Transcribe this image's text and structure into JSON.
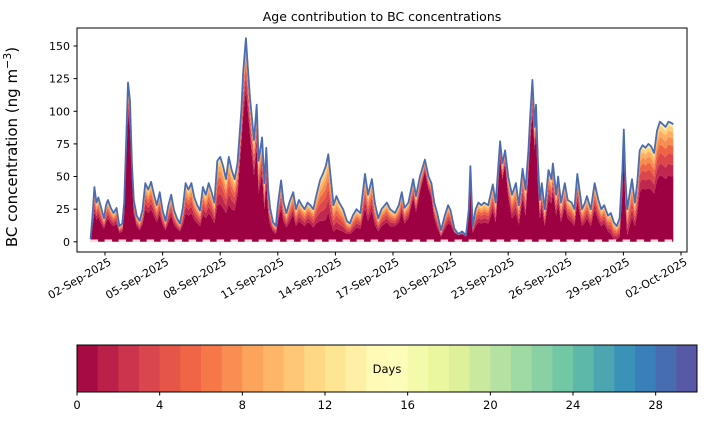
{
  "figure": {
    "title": "Age contribution to BC concentrations"
  },
  "chart_data": {
    "type": "area",
    "subtype": "stacked-age-spectrum",
    "title": "Age contribution to BC concentrations",
    "ylabel_parts": {
      "prefix": "BC concentration (ng m",
      "superscript": "−3",
      "suffix": ")"
    },
    "ylabel_plain": "BC concentration (ng m^-3)",
    "xlabel": "",
    "grid": false,
    "ylim": [
      -7.8,
      163.8
    ],
    "yticks": [
      0,
      25,
      50,
      75,
      100,
      125,
      150
    ],
    "x_unit": "days since 01-Sep-2025 00:00",
    "xtick_days": [
      1,
      4,
      7,
      10,
      13,
      16,
      19,
      22,
      25,
      28,
      31
    ],
    "xtick_labels": [
      "02-Sep-2025",
      "05-Sep-2025",
      "08-Sep-2025",
      "11-Sep-2025",
      "14-Sep-2025",
      "17-Sep-2025",
      "20-Sep-2025",
      "23-Sep-2025",
      "26-Sep-2025",
      "29-Sep-2025",
      "02-Oct-2025"
    ],
    "columns": [
      "day_since_01sep",
      "total_bc_ng_m3",
      "young_bc_age0to2d_estimate"
    ],
    "points": [
      [
        0.25,
        2,
        1
      ],
      [
        0.35,
        20,
        11
      ],
      [
        0.45,
        42,
        23
      ],
      [
        0.55,
        30,
        17
      ],
      [
        0.65,
        34,
        19
      ],
      [
        0.8,
        26,
        14
      ],
      [
        0.95,
        18,
        10
      ],
      [
        1.05,
        28,
        15
      ],
      [
        1.15,
        32,
        18
      ],
      [
        1.3,
        26,
        14
      ],
      [
        1.45,
        22,
        12
      ],
      [
        1.6,
        26,
        14
      ],
      [
        1.75,
        12,
        7
      ],
      [
        1.9,
        14,
        8
      ],
      [
        2.0,
        30,
        21
      ],
      [
        2.1,
        75,
        60
      ],
      [
        2.2,
        122,
        98
      ],
      [
        2.3,
        108,
        86
      ],
      [
        2.4,
        60,
        48
      ],
      [
        2.5,
        32,
        22
      ],
      [
        2.65,
        20,
        12
      ],
      [
        2.8,
        16,
        9
      ],
      [
        2.95,
        24,
        13
      ],
      [
        3.1,
        45,
        25
      ],
      [
        3.25,
        40,
        22
      ],
      [
        3.4,
        46,
        25
      ],
      [
        3.55,
        36,
        20
      ],
      [
        3.7,
        28,
        15
      ],
      [
        3.85,
        38,
        21
      ],
      [
        4.0,
        24,
        13
      ],
      [
        4.15,
        16,
        9
      ],
      [
        4.3,
        28,
        15
      ],
      [
        4.45,
        36,
        20
      ],
      [
        4.6,
        24,
        13
      ],
      [
        4.75,
        18,
        10
      ],
      [
        4.9,
        14,
        8
      ],
      [
        5.05,
        26,
        13
      ],
      [
        5.2,
        45,
        22
      ],
      [
        5.35,
        40,
        20
      ],
      [
        5.5,
        45,
        22
      ],
      [
        5.65,
        34,
        17
      ],
      [
        5.8,
        28,
        14
      ],
      [
        5.95,
        24,
        12
      ],
      [
        6.1,
        42,
        21
      ],
      [
        6.25,
        36,
        18
      ],
      [
        6.4,
        45,
        22
      ],
      [
        6.55,
        38,
        19
      ],
      [
        6.7,
        30,
        14
      ],
      [
        6.85,
        62,
        28
      ],
      [
        7.0,
        65,
        29
      ],
      [
        7.15,
        58,
        26
      ],
      [
        7.3,
        48,
        22
      ],
      [
        7.45,
        65,
        29
      ],
      [
        7.6,
        55,
        25
      ],
      [
        7.75,
        48,
        24
      ],
      [
        7.9,
        60,
        36
      ],
      [
        8.0,
        80,
        56
      ],
      [
        8.1,
        100,
        75
      ],
      [
        8.2,
        130,
        97
      ],
      [
        8.34,
        156,
        117
      ],
      [
        8.45,
        132,
        99
      ],
      [
        8.55,
        110,
        82
      ],
      [
        8.65,
        95,
        66
      ],
      [
        8.76,
        78,
        51
      ],
      [
        8.9,
        105,
        73
      ],
      [
        9.0,
        62,
        37
      ],
      [
        9.18,
        80,
        52
      ],
      [
        9.3,
        45,
        25
      ],
      [
        9.4,
        72,
        47
      ],
      [
        9.5,
        40,
        22
      ],
      [
        9.6,
        26,
        13
      ],
      [
        9.75,
        15,
        8
      ],
      [
        9.9,
        12,
        6
      ],
      [
        10.0,
        28,
        15
      ],
      [
        10.17,
        47,
        26
      ],
      [
        10.3,
        30,
        15
      ],
      [
        10.45,
        22,
        11
      ],
      [
        10.6,
        30,
        15
      ],
      [
        10.8,
        38,
        21
      ],
      [
        10.95,
        25,
        12
      ],
      [
        11.1,
        32,
        16
      ],
      [
        11.25,
        28,
        14
      ],
      [
        11.4,
        25,
        12
      ],
      [
        11.55,
        30,
        15
      ],
      [
        11.7,
        28,
        14
      ],
      [
        11.85,
        25,
        11
      ],
      [
        12.0,
        35,
        14
      ],
      [
        12.2,
        47,
        16
      ],
      [
        12.35,
        52,
        16
      ],
      [
        12.5,
        58,
        17
      ],
      [
        12.63,
        67,
        23
      ],
      [
        12.75,
        50,
        15
      ],
      [
        12.9,
        28,
        8
      ],
      [
        13.05,
        35,
        10
      ],
      [
        13.2,
        30,
        9
      ],
      [
        13.4,
        25,
        8
      ],
      [
        13.6,
        16,
        6
      ],
      [
        13.75,
        14,
        6
      ],
      [
        13.9,
        20,
        8
      ],
      [
        14.1,
        25,
        11
      ],
      [
        14.3,
        22,
        10
      ],
      [
        14.54,
        52,
        26
      ],
      [
        14.7,
        36,
        16
      ],
      [
        14.9,
        48,
        24
      ],
      [
        15.05,
        30,
        13
      ],
      [
        15.23,
        18,
        8
      ],
      [
        15.4,
        25,
        12
      ],
      [
        15.68,
        30,
        15
      ],
      [
        15.85,
        25,
        12
      ],
      [
        16.1,
        22,
        12
      ],
      [
        16.3,
        28,
        15
      ],
      [
        16.46,
        38,
        23
      ],
      [
        16.6,
        26,
        14
      ],
      [
        16.8,
        30,
        18
      ],
      [
        17.05,
        48,
        34
      ],
      [
        17.2,
        35,
        23
      ],
      [
        17.4,
        50,
        38
      ],
      [
        17.66,
        63,
        54
      ],
      [
        17.85,
        50,
        40
      ],
      [
        18.0,
        45,
        34
      ],
      [
        18.15,
        30,
        18
      ],
      [
        18.3,
        22,
        11
      ],
      [
        18.5,
        9,
        4
      ],
      [
        18.7,
        20,
        10
      ],
      [
        18.87,
        28,
        14
      ],
      [
        19.0,
        24,
        13
      ],
      [
        19.2,
        10,
        7
      ],
      [
        19.4,
        6,
        5
      ],
      [
        19.6,
        8,
        6
      ],
      [
        19.8,
        5,
        4
      ],
      [
        19.95,
        25,
        20
      ],
      [
        20.03,
        58,
        49
      ],
      [
        20.15,
        12,
        7
      ],
      [
        20.3,
        25,
        12
      ],
      [
        20.45,
        30,
        15
      ],
      [
        20.6,
        28,
        14
      ],
      [
        20.75,
        30,
        15
      ],
      [
        20.96,
        28,
        14
      ],
      [
        21.2,
        44,
        24
      ],
      [
        21.35,
        30,
        15
      ],
      [
        21.58,
        77,
        65
      ],
      [
        21.7,
        60,
        48
      ],
      [
        21.84,
        70,
        60
      ],
      [
        22.0,
        50,
        35
      ],
      [
        22.2,
        36,
        18
      ],
      [
        22.4,
        45,
        22
      ],
      [
        22.55,
        28,
        13
      ],
      [
        22.75,
        56,
        34
      ],
      [
        22.9,
        40,
        20
      ],
      [
        23.05,
        70,
        52
      ],
      [
        23.14,
        95,
        76
      ],
      [
        23.26,
        124,
        99
      ],
      [
        23.38,
        88,
        70
      ],
      [
        23.45,
        105,
        84
      ],
      [
        23.55,
        60,
        42
      ],
      [
        23.65,
        32,
        18
      ],
      [
        23.75,
        45,
        27
      ],
      [
        23.9,
        25,
        12
      ],
      [
        24.1,
        55,
        33
      ],
      [
        24.25,
        48,
        29
      ],
      [
        24.33,
        60,
        39
      ],
      [
        24.5,
        36,
        20
      ],
      [
        24.6,
        50,
        30
      ],
      [
        24.75,
        30,
        15
      ],
      [
        24.95,
        45,
        27
      ],
      [
        25.1,
        32,
        18
      ],
      [
        25.3,
        30,
        15
      ],
      [
        25.45,
        25,
        12
      ],
      [
        25.6,
        52,
        31
      ],
      [
        25.85,
        25,
        12
      ],
      [
        26.0,
        30,
        15
      ],
      [
        26.1,
        35,
        18
      ],
      [
        26.3,
        25,
        12
      ],
      [
        26.5,
        45,
        25
      ],
      [
        26.7,
        32,
        16
      ],
      [
        26.85,
        25,
        12
      ],
      [
        27.0,
        28,
        14
      ],
      [
        27.2,
        20,
        8
      ],
      [
        27.35,
        22,
        6
      ],
      [
        27.5,
        15,
        2
      ],
      [
        27.65,
        12,
        2
      ],
      [
        27.8,
        18,
        4
      ],
      [
        27.95,
        55,
        38
      ],
      [
        28.02,
        86,
        69
      ],
      [
        28.1,
        50,
        30
      ],
      [
        28.2,
        25,
        5
      ],
      [
        28.45,
        48,
        19
      ],
      [
        28.6,
        30,
        12
      ],
      [
        28.72,
        45,
        22
      ],
      [
        28.85,
        70,
        38
      ],
      [
        29.0,
        74,
        41
      ],
      [
        29.15,
        72,
        40
      ],
      [
        29.3,
        75,
        41
      ],
      [
        29.45,
        73,
        40
      ],
      [
        29.6,
        68,
        37
      ],
      [
        29.75,
        85,
        47
      ],
      [
        29.9,
        92,
        51
      ],
      [
        30.05,
        90,
        50
      ],
      [
        30.2,
        88,
        48
      ],
      [
        30.35,
        92,
        51
      ],
      [
        30.5,
        91,
        50
      ],
      [
        30.6,
        90,
        50
      ]
    ],
    "style": {
      "total_line_color": "#4c6cb0",
      "base_color": "#9e0142",
      "aged_band_fractions": [
        0.22,
        0.42,
        0.58,
        0.72,
        0.84,
        0.93,
        1.0
      ],
      "aged_band_colors": [
        "#c0274e",
        "#dc474c",
        "#ee6445",
        "#f88d51",
        "#fdae61",
        "#fdd081",
        "#feeca7"
      ],
      "zero_dash_color": "#ffd9e0",
      "axis_color": "#000000"
    },
    "colorbar": {
      "label": "Days",
      "min": 0,
      "max": 30,
      "n_segments": 30,
      "ticks": [
        0,
        4,
        8,
        12,
        16,
        20,
        24,
        28
      ],
      "colormap": "Spectral",
      "anchors": [
        "#9e0142",
        "#d53e4f",
        "#f46d43",
        "#fdae61",
        "#fee08b",
        "#ffffbf",
        "#e6f598",
        "#abdda4",
        "#66c2a5",
        "#3288bd",
        "#5e4fa2"
      ]
    }
  }
}
